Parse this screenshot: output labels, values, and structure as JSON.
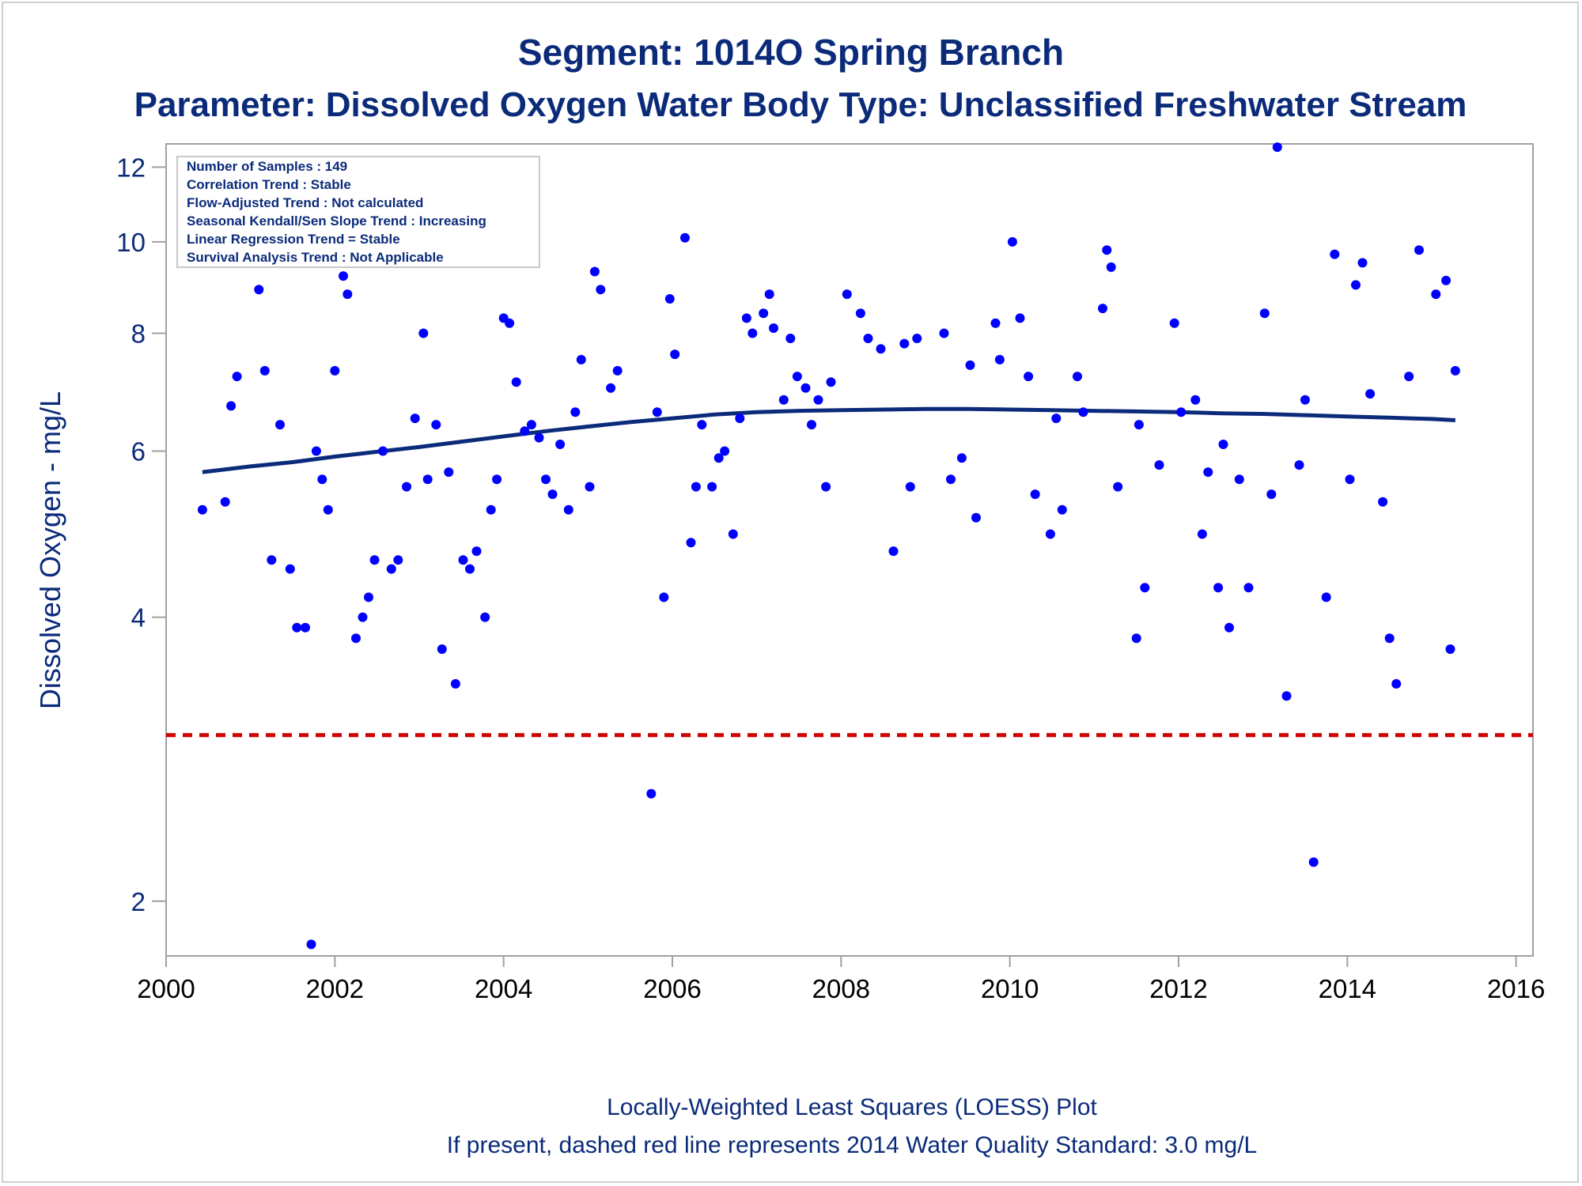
{
  "titles": {
    "line1": "Segment: 1014O  Spring Branch",
    "line2": "Parameter: Dissolved Oxygen   Water Body Type: Unclassified Freshwater Stream"
  },
  "stats_box": [
    "Number of Samples : 149",
    "Correlation Trend : Stable",
    "Flow-Adjusted Trend : Not calculated",
    "Seasonal Kendall/Sen Slope Trend : Increasing",
    "Linear Regression Trend = Stable",
    "Survival Analysis Trend : Not Applicable"
  ],
  "footnotes": {
    "line1": "Locally-Weighted Least Squares (LOESS) Plot",
    "line2": "If present, dashed red line represents 2014 Water Quality Standard: 3.0 mg/L"
  },
  "colors": {
    "points": "#0000ff",
    "loess": "#0b2b7a",
    "standard_line": "#d00000",
    "text": "#0b2b7a",
    "axis": "#a0a0a0"
  },
  "chart_data": {
    "type": "scatter",
    "title": "Segment: 1014O  Spring Branch",
    "subtitle": "Parameter: Dissolved Oxygen   Water Body Type: Unclassified Freshwater Stream",
    "xlabel": "",
    "ylabel": "Dissolved Oxygen - mg/L",
    "xlim": [
      2000,
      2016.2
    ],
    "ylim": [
      1.75,
      12.7
    ],
    "y_scale": "log",
    "x_ticks": [
      2000,
      2002,
      2004,
      2006,
      2008,
      2010,
      2012,
      2014,
      2016
    ],
    "y_ticks": [
      2,
      4,
      6,
      8,
      10,
      12
    ],
    "grid": false,
    "legend": "none",
    "reference_line": {
      "y": 3.0,
      "style": "dashed"
    },
    "series": [
      {
        "type": "scatter",
        "points": [
          [
            2000.43,
            5.2
          ],
          [
            2000.7,
            5.3
          ],
          [
            2000.77,
            6.7
          ],
          [
            2000.84,
            7.2
          ],
          [
            2000.95,
            10.8
          ],
          [
            2001.02,
            9.6
          ],
          [
            2001.1,
            8.9
          ],
          [
            2001.17,
            7.3
          ],
          [
            2001.25,
            4.6
          ],
          [
            2001.35,
            6.4
          ],
          [
            2001.47,
            4.5
          ],
          [
            2001.55,
            3.9
          ],
          [
            2001.65,
            3.9
          ],
          [
            2001.72,
            1.8
          ],
          [
            2001.78,
            6.0
          ],
          [
            2001.85,
            5.6
          ],
          [
            2001.92,
            5.2
          ],
          [
            2002.0,
            7.3
          ],
          [
            2002.1,
            9.2
          ],
          [
            2002.15,
            8.8
          ],
          [
            2002.25,
            3.8
          ],
          [
            2002.33,
            4.0
          ],
          [
            2002.4,
            4.2
          ],
          [
            2002.47,
            4.6
          ],
          [
            2002.57,
            6.0
          ],
          [
            2002.67,
            4.5
          ],
          [
            2002.75,
            4.6
          ],
          [
            2002.85,
            5.5
          ],
          [
            2002.95,
            6.5
          ],
          [
            2003.05,
            8.0
          ],
          [
            2003.1,
            5.6
          ],
          [
            2003.2,
            6.4
          ],
          [
            2003.27,
            3.7
          ],
          [
            2003.35,
            5.7
          ],
          [
            2003.43,
            3.4
          ],
          [
            2003.52,
            4.6
          ],
          [
            2003.6,
            4.5
          ],
          [
            2003.68,
            4.7
          ],
          [
            2003.78,
            4.0
          ],
          [
            2003.85,
            5.2
          ],
          [
            2003.92,
            5.6
          ],
          [
            2004.0,
            8.3
          ],
          [
            2004.07,
            8.2
          ],
          [
            2004.15,
            7.1
          ],
          [
            2004.25,
            6.3
          ],
          [
            2004.33,
            6.4
          ],
          [
            2004.42,
            6.2
          ],
          [
            2004.5,
            5.6
          ],
          [
            2004.58,
            5.4
          ],
          [
            2004.67,
            6.1
          ],
          [
            2004.77,
            5.2
          ],
          [
            2004.85,
            6.6
          ],
          [
            2004.92,
            7.5
          ],
          [
            2005.02,
            5.5
          ],
          [
            2005.08,
            9.3
          ],
          [
            2005.15,
            8.9
          ],
          [
            2005.27,
            7.0
          ],
          [
            2005.35,
            7.3
          ],
          [
            2005.75,
            2.6
          ],
          [
            2005.82,
            6.6
          ],
          [
            2005.9,
            4.2
          ],
          [
            2005.97,
            8.7
          ],
          [
            2006.03,
            7.6
          ],
          [
            2006.15,
            10.1
          ],
          [
            2006.22,
            4.8
          ],
          [
            2006.28,
            5.5
          ],
          [
            2006.35,
            6.4
          ],
          [
            2006.47,
            5.5
          ],
          [
            2006.55,
            5.9
          ],
          [
            2006.62,
            6.0
          ],
          [
            2006.72,
            4.9
          ],
          [
            2006.8,
            6.5
          ],
          [
            2006.88,
            8.3
          ],
          [
            2006.95,
            8.0
          ],
          [
            2007.08,
            8.4
          ],
          [
            2007.15,
            8.8
          ],
          [
            2007.2,
            8.1
          ],
          [
            2007.32,
            6.8
          ],
          [
            2007.4,
            7.9
          ],
          [
            2007.48,
            7.2
          ],
          [
            2007.58,
            7.0
          ],
          [
            2007.65,
            6.4
          ],
          [
            2007.73,
            6.8
          ],
          [
            2007.82,
            5.5
          ],
          [
            2007.88,
            7.1
          ],
          [
            2008.07,
            8.8
          ],
          [
            2008.23,
            8.4
          ],
          [
            2008.32,
            7.9
          ],
          [
            2008.47,
            7.7
          ],
          [
            2008.62,
            4.7
          ],
          [
            2008.75,
            7.8
          ],
          [
            2008.82,
            5.5
          ],
          [
            2008.9,
            7.9
          ],
          [
            2009.22,
            8.0
          ],
          [
            2009.3,
            5.6
          ],
          [
            2009.43,
            5.9
          ],
          [
            2009.53,
            7.4
          ],
          [
            2009.6,
            5.1
          ],
          [
            2009.83,
            8.2
          ],
          [
            2009.88,
            7.5
          ],
          [
            2010.03,
            10.0
          ],
          [
            2010.12,
            8.3
          ],
          [
            2010.22,
            7.2
          ],
          [
            2010.3,
            5.4
          ],
          [
            2010.48,
            4.9
          ],
          [
            2010.55,
            6.5
          ],
          [
            2010.62,
            5.2
          ],
          [
            2010.8,
            7.2
          ],
          [
            2010.87,
            6.6
          ],
          [
            2011.1,
            8.5
          ],
          [
            2011.15,
            9.8
          ],
          [
            2011.2,
            9.4
          ],
          [
            2011.28,
            5.5
          ],
          [
            2011.5,
            3.8
          ],
          [
            2011.53,
            6.4
          ],
          [
            2011.6,
            4.3
          ],
          [
            2011.77,
            5.8
          ],
          [
            2011.95,
            8.2
          ],
          [
            2012.03,
            6.6
          ],
          [
            2012.2,
            6.8
          ],
          [
            2012.28,
            4.9
          ],
          [
            2012.35,
            5.7
          ],
          [
            2012.47,
            4.3
          ],
          [
            2012.53,
            6.1
          ],
          [
            2012.6,
            3.9
          ],
          [
            2012.72,
            5.6
          ],
          [
            2012.83,
            4.3
          ],
          [
            2013.02,
            8.4
          ],
          [
            2013.1,
            5.4
          ],
          [
            2013.17,
            12.6
          ],
          [
            2013.28,
            3.3
          ],
          [
            2013.43,
            5.8
          ],
          [
            2013.5,
            6.8
          ],
          [
            2013.6,
            2.2
          ],
          [
            2013.75,
            4.2
          ],
          [
            2013.85,
            9.7
          ],
          [
            2014.03,
            5.6
          ],
          [
            2014.1,
            9.0
          ],
          [
            2014.18,
            9.5
          ],
          [
            2014.27,
            6.9
          ],
          [
            2014.42,
            5.3
          ],
          [
            2014.5,
            3.8
          ],
          [
            2014.58,
            3.4
          ],
          [
            2014.73,
            7.2
          ],
          [
            2014.85,
            9.8
          ],
          [
            2015.05,
            8.8
          ],
          [
            2015.17,
            9.1
          ],
          [
            2015.22,
            3.7
          ],
          [
            2015.28,
            7.3
          ]
        ]
      },
      {
        "type": "line",
        "points": [
          [
            2000.43,
            5.7
          ],
          [
            2001.0,
            5.78
          ],
          [
            2001.5,
            5.84
          ],
          [
            2002.0,
            5.92
          ],
          [
            2002.5,
            5.99
          ],
          [
            2003.0,
            6.06
          ],
          [
            2003.5,
            6.14
          ],
          [
            2004.0,
            6.22
          ],
          [
            2004.5,
            6.3
          ],
          [
            2005.0,
            6.37
          ],
          [
            2005.5,
            6.44
          ],
          [
            2006.0,
            6.5
          ],
          [
            2006.5,
            6.56
          ],
          [
            2007.0,
            6.6
          ],
          [
            2007.5,
            6.62
          ],
          [
            2008.0,
            6.63
          ],
          [
            2008.5,
            6.64
          ],
          [
            2009.0,
            6.65
          ],
          [
            2009.5,
            6.65
          ],
          [
            2010.0,
            6.64
          ],
          [
            2010.5,
            6.63
          ],
          [
            2011.0,
            6.62
          ],
          [
            2011.5,
            6.61
          ],
          [
            2012.0,
            6.6
          ],
          [
            2012.5,
            6.58
          ],
          [
            2013.0,
            6.57
          ],
          [
            2013.5,
            6.55
          ],
          [
            2014.0,
            6.53
          ],
          [
            2014.5,
            6.51
          ],
          [
            2015.0,
            6.49
          ],
          [
            2015.28,
            6.47
          ]
        ]
      }
    ]
  }
}
